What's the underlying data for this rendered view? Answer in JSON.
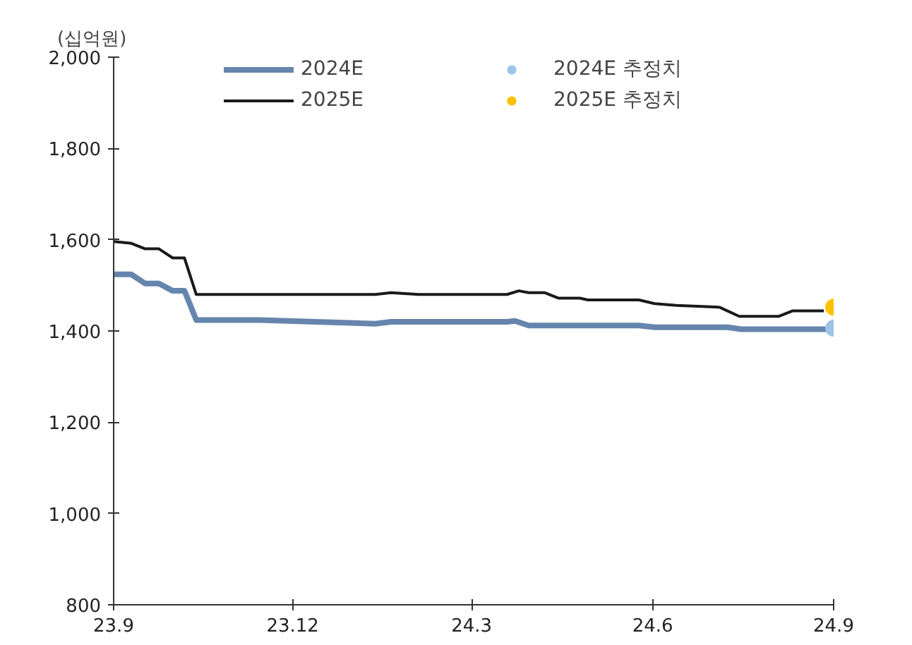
{
  "chart_data": {
    "type": "line",
    "ylabel": "(십억원)",
    "xlim": [
      "2023-09-01",
      "2024-09-01"
    ],
    "xticks": [
      {
        "value": "2023-09-01",
        "label": "23.9"
      },
      {
        "value": "2023-12-01",
        "label": "23.12"
      },
      {
        "value": "2024-03-01",
        "label": "24.3"
      },
      {
        "value": "2024-06-01",
        "label": "24.6"
      },
      {
        "value": "2024-09-01",
        "label": "24.9"
      }
    ],
    "ylim": [
      800,
      2000
    ],
    "yticks": [
      {
        "value": 800,
        "label": "800"
      },
      {
        "value": 1000,
        "label": "1,000"
      },
      {
        "value": 1200,
        "label": "1,200"
      },
      {
        "value": 1400,
        "label": "1,400"
      },
      {
        "value": 1600,
        "label": "1,600"
      },
      {
        "value": 1800,
        "label": "1,800"
      },
      {
        "value": 2000,
        "label": "2,000"
      }
    ],
    "grid": false,
    "legend": "top",
    "marker": "none",
    "line_style": "solid",
    "series": [
      {
        "name": "2024E",
        "color": "#6685ad",
        "x": [
          "2023-09-01",
          "2023-09-10",
          "2023-09-17",
          "2023-09-24",
          "2023-10-01",
          "2023-10-07",
          "2023-10-13",
          "2023-11-14",
          "2024-01-12",
          "2024-01-20",
          "2024-02-03",
          "2024-03-19",
          "2024-03-23",
          "2024-03-30",
          "2024-05-25",
          "2024-06-02",
          "2024-07-09",
          "2024-07-16",
          "2024-08-07",
          "2024-08-15",
          "2024-09-01"
        ],
        "values": [
          1524,
          1524,
          1504,
          1504,
          1488,
          1488,
          1424,
          1424,
          1416,
          1420,
          1420,
          1420,
          1422,
          1412,
          1412,
          1408,
          1408,
          1404,
          1404,
          1404,
          1404
        ]
      },
      {
        "name": "2025E",
        "color": "#1a1a1a",
        "x": [
          "2023-09-01",
          "2023-09-10",
          "2023-09-17",
          "2023-09-24",
          "2023-10-01",
          "2023-10-07",
          "2023-10-13",
          "2024-01-12",
          "2024-01-20",
          "2024-02-03",
          "2024-03-19",
          "2024-03-25",
          "2024-03-30",
          "2024-04-07",
          "2024-04-14",
          "2024-04-25",
          "2024-04-29",
          "2024-05-25",
          "2024-06-02",
          "2024-06-13",
          "2024-07-05",
          "2024-07-15",
          "2024-08-04",
          "2024-08-11",
          "2024-08-27"
        ],
        "values": [
          1596,
          1592,
          1580,
          1580,
          1560,
          1560,
          1480,
          1480,
          1484,
          1480,
          1480,
          1488,
          1484,
          1484,
          1472,
          1472,
          1468,
          1468,
          1460,
          1456,
          1452,
          1432,
          1432,
          1444,
          1444
        ]
      },
      {
        "name": "2024E 추정치",
        "type": "scatter",
        "marker": "circle",
        "color": "#9dc3e6",
        "x": [
          "2024-09-01"
        ],
        "values": [
          1406
        ]
      },
      {
        "name": "2025E 추정치",
        "type": "scatter",
        "marker": "circle",
        "color": "#ffc000",
        "x": [
          "2024-09-01"
        ],
        "values": [
          1452
        ]
      }
    ]
  }
}
